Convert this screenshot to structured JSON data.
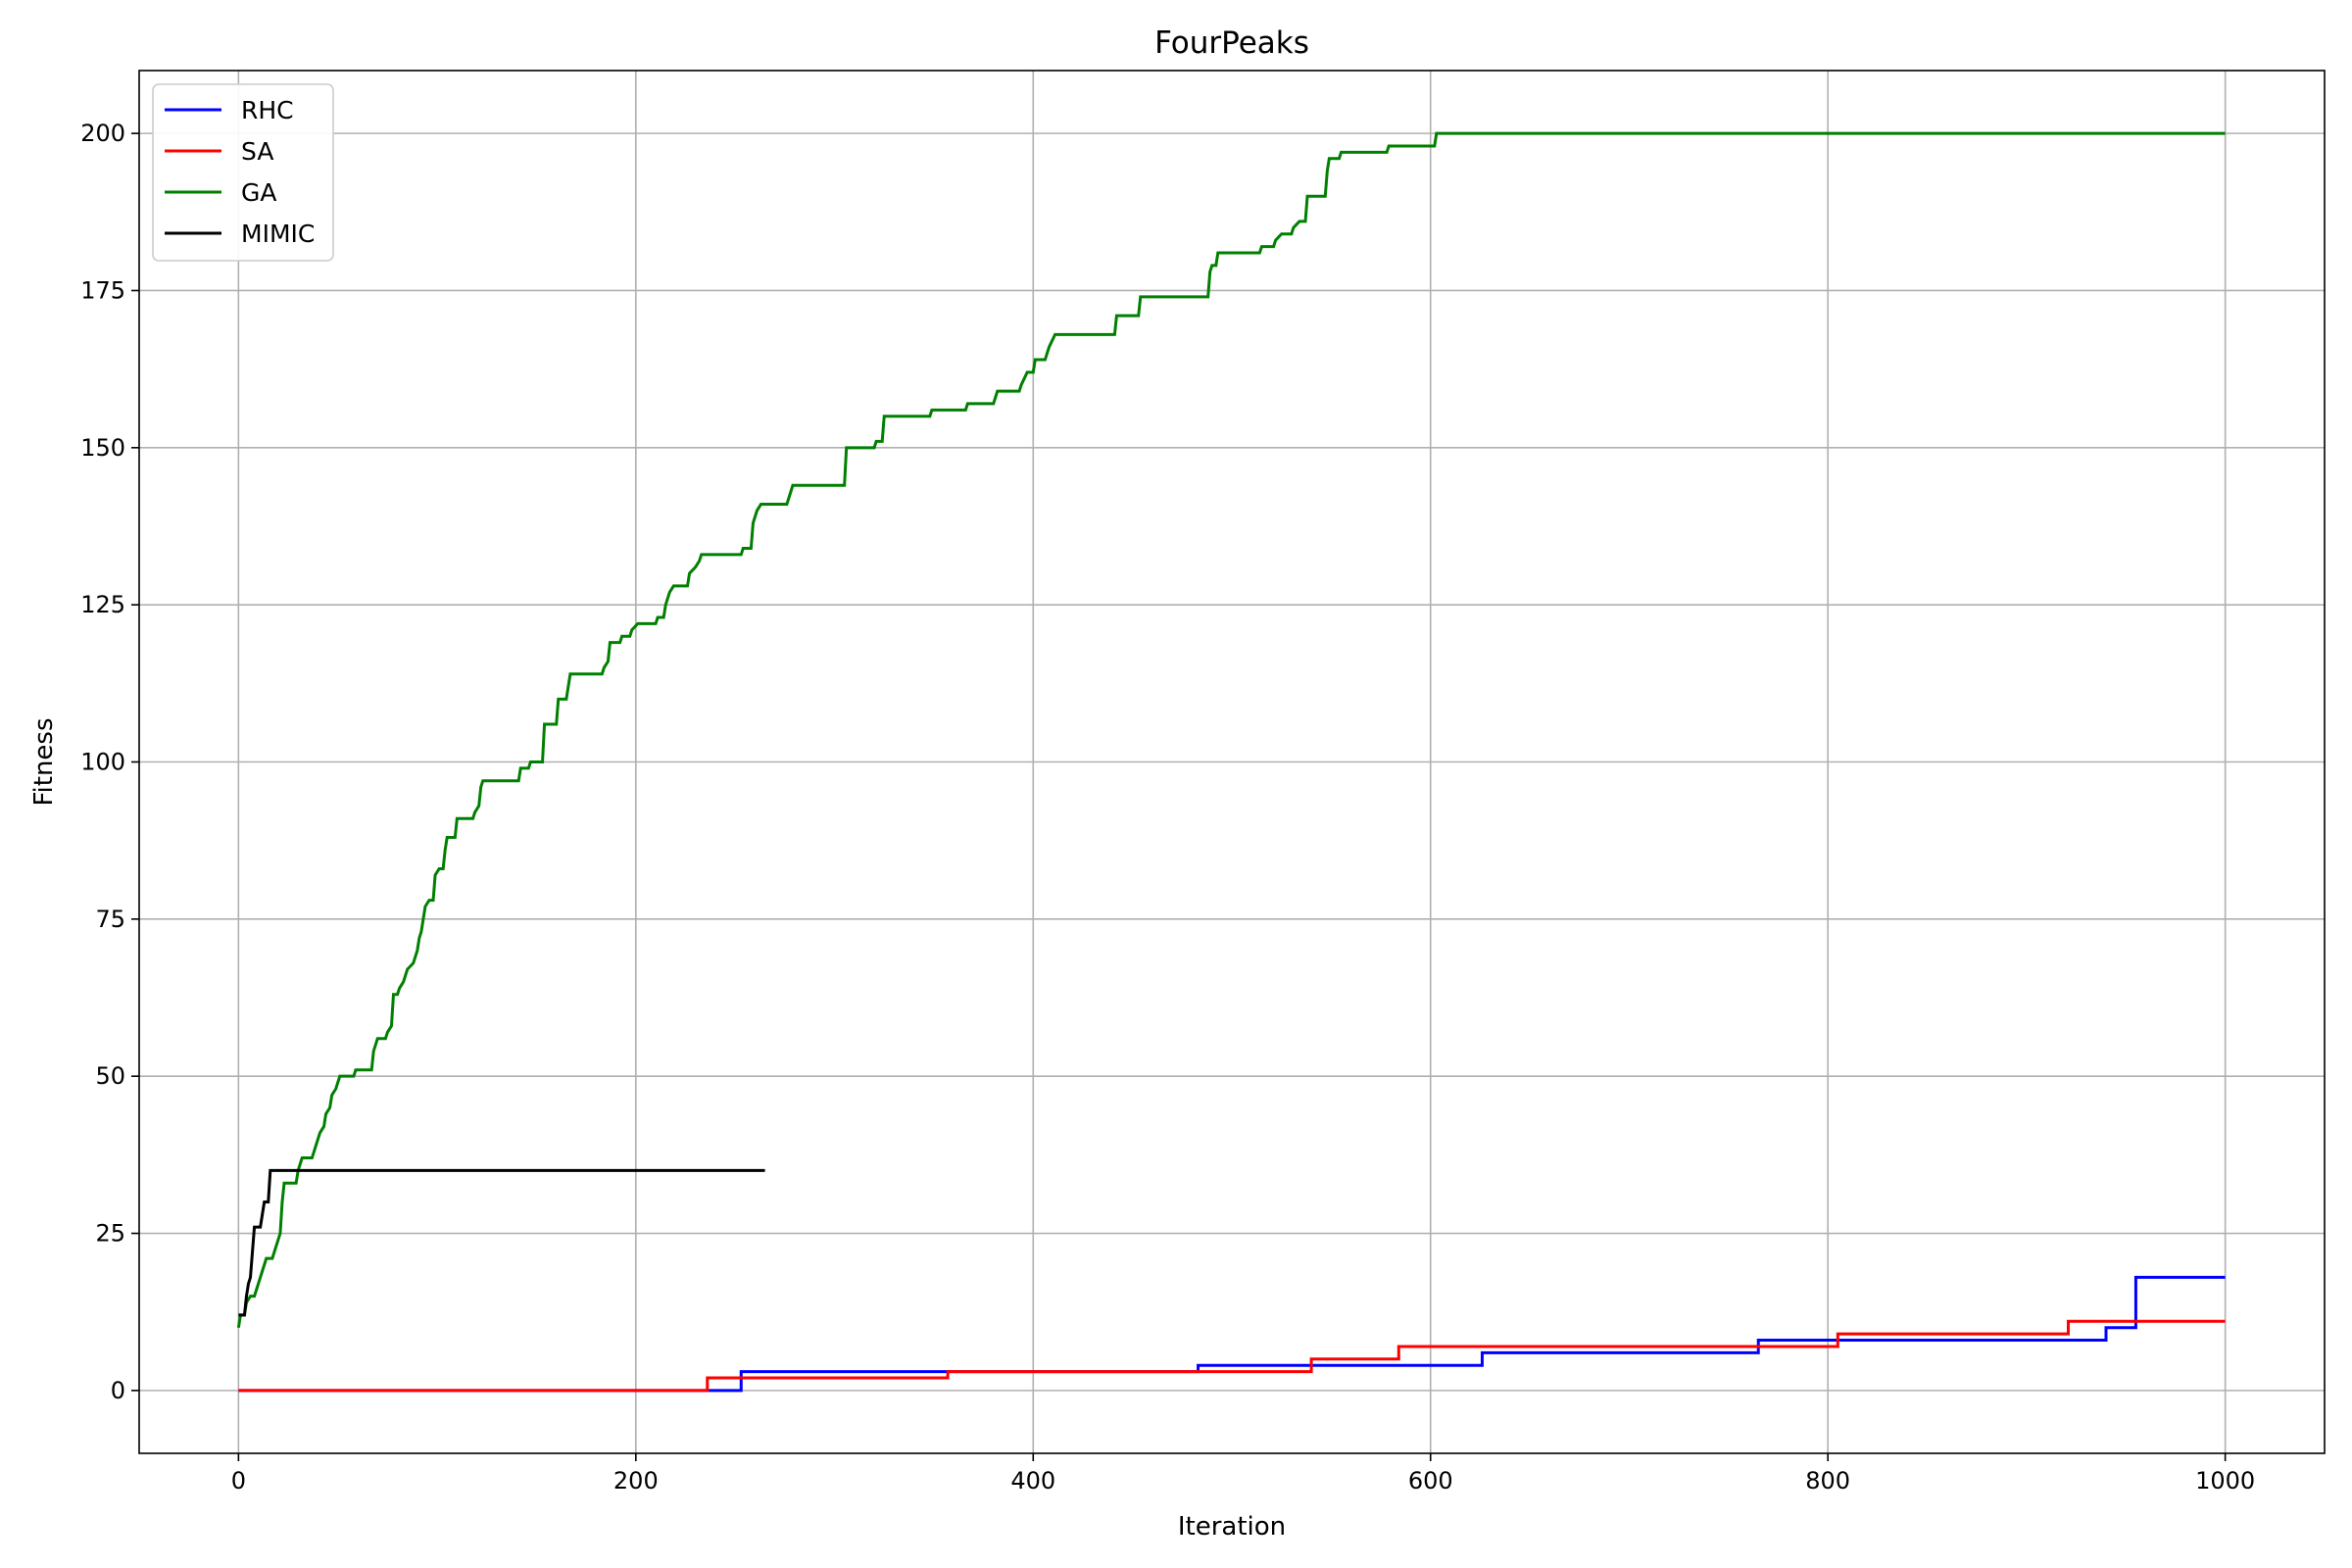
{
  "chart_data": {
    "type": "line",
    "title": "FourPeaks",
    "xlabel": "Iteration",
    "ylabel": "Fitness",
    "xlim": [
      -50,
      1050
    ],
    "ylim": [
      -10,
      210
    ],
    "xticks": [
      0,
      200,
      400,
      600,
      800,
      1000
    ],
    "yticks": [
      0,
      25,
      50,
      75,
      100,
      125,
      150,
      175,
      200
    ],
    "xtick_labels": [
      "0",
      "200",
      "400",
      "600",
      "800",
      "1000"
    ],
    "ytick_labels": [
      "0",
      "25",
      "50",
      "75",
      "100",
      "125",
      "150",
      "175",
      "200"
    ],
    "grid": true,
    "legend_position": "upper left",
    "series": [
      {
        "name": "RHC",
        "color": "#0000ff",
        "step": true,
        "points": [
          [
            0,
            0
          ],
          [
            253,
            0
          ],
          [
            253,
            3
          ],
          [
            483,
            3
          ],
          [
            483,
            4
          ],
          [
            626,
            4
          ],
          [
            626,
            6
          ],
          [
            765,
            6
          ],
          [
            765,
            8
          ],
          [
            940,
            8
          ],
          [
            940,
            10
          ],
          [
            955,
            10
          ],
          [
            955,
            18
          ],
          [
            1000,
            18
          ]
        ]
      },
      {
        "name": "SA",
        "color": "#ff0000",
        "step": true,
        "points": [
          [
            0,
            0
          ],
          [
            236,
            0
          ],
          [
            236,
            2
          ],
          [
            357,
            2
          ],
          [
            357,
            3
          ],
          [
            540,
            3
          ],
          [
            540,
            5
          ],
          [
            584,
            5
          ],
          [
            584,
            7
          ],
          [
            805,
            7
          ],
          [
            805,
            9
          ],
          [
            921,
            9
          ],
          [
            921,
            11
          ],
          [
            1000,
            11
          ]
        ]
      },
      {
        "name": "GA",
        "color": "#008000",
        "step": true,
        "points": [
          [
            0,
            10
          ],
          [
            1,
            12
          ],
          [
            3,
            12
          ],
          [
            4,
            14
          ],
          [
            6,
            15
          ],
          [
            8,
            15
          ],
          [
            9,
            16
          ],
          [
            10,
            17
          ],
          [
            11,
            18
          ],
          [
            12,
            19
          ],
          [
            14,
            21
          ],
          [
            17,
            21
          ],
          [
            18,
            22
          ],
          [
            19,
            23
          ],
          [
            21,
            25
          ],
          [
            22,
            30
          ],
          [
            23,
            33
          ],
          [
            29,
            33
          ],
          [
            30,
            35
          ],
          [
            32,
            37
          ],
          [
            37,
            37
          ],
          [
            38,
            38
          ],
          [
            39,
            39
          ],
          [
            40,
            40
          ],
          [
            41,
            41
          ],
          [
            43,
            42
          ],
          [
            44,
            44
          ],
          [
            46,
            45
          ],
          [
            47,
            47
          ],
          [
            49,
            48
          ],
          [
            51,
            50
          ],
          [
            58,
            50
          ],
          [
            59,
            51
          ],
          [
            67,
            51
          ],
          [
            68,
            54
          ],
          [
            70,
            56
          ],
          [
            74,
            56
          ],
          [
            75,
            57
          ],
          [
            77,
            58
          ],
          [
            78,
            63
          ],
          [
            80,
            63
          ],
          [
            81,
            64
          ],
          [
            83,
            65
          ],
          [
            85,
            67
          ],
          [
            88,
            68
          ],
          [
            89,
            69
          ],
          [
            90,
            70
          ],
          [
            91,
            72
          ],
          [
            92,
            73
          ],
          [
            94,
            77
          ],
          [
            96,
            78
          ],
          [
            98,
            78
          ],
          [
            99,
            82
          ],
          [
            101,
            83
          ],
          [
            103,
            83
          ],
          [
            104,
            86
          ],
          [
            105,
            88
          ],
          [
            109,
            88
          ],
          [
            110,
            91
          ],
          [
            118,
            91
          ],
          [
            119,
            92
          ],
          [
            121,
            93
          ],
          [
            122,
            96
          ],
          [
            123,
            97
          ],
          [
            141,
            97
          ],
          [
            142,
            99
          ],
          [
            146,
            99
          ],
          [
            147,
            100
          ],
          [
            153,
            100
          ],
          [
            154,
            106
          ],
          [
            160,
            106
          ],
          [
            161,
            110
          ],
          [
            165,
            110
          ],
          [
            166,
            112
          ],
          [
            167,
            114
          ],
          [
            183,
            114
          ],
          [
            184,
            115
          ],
          [
            186,
            116
          ],
          [
            187,
            119
          ],
          [
            192,
            119
          ],
          [
            193,
            120
          ],
          [
            197,
            120
          ],
          [
            198,
            121
          ],
          [
            201,
            122
          ],
          [
            210,
            122
          ],
          [
            211,
            123
          ],
          [
            214,
            123
          ],
          [
            215,
            125
          ],
          [
            217,
            127
          ],
          [
            219,
            128
          ],
          [
            226,
            128
          ],
          [
            227,
            130
          ],
          [
            230,
            131
          ],
          [
            232,
            132
          ],
          [
            233,
            133
          ],
          [
            253,
            133
          ],
          [
            254,
            134
          ],
          [
            258,
            134
          ],
          [
            259,
            138
          ],
          [
            261,
            140
          ],
          [
            263,
            141
          ],
          [
            276,
            141
          ],
          [
            277,
            142
          ],
          [
            279,
            144
          ],
          [
            305,
            144
          ],
          [
            306,
            150
          ],
          [
            320,
            150
          ],
          [
            321,
            151
          ],
          [
            324,
            151
          ],
          [
            325,
            155
          ],
          [
            348,
            155
          ],
          [
            349,
            156
          ],
          [
            366,
            156
          ],
          [
            367,
            157
          ],
          [
            380,
            157
          ],
          [
            381,
            158
          ],
          [
            382,
            159
          ],
          [
            393,
            159
          ],
          [
            394,
            160
          ],
          [
            397,
            162
          ],
          [
            400,
            162
          ],
          [
            401,
            164
          ],
          [
            406,
            164
          ],
          [
            407,
            165
          ],
          [
            408,
            166
          ],
          [
            411,
            168
          ],
          [
            441,
            168
          ],
          [
            442,
            171
          ],
          [
            453,
            171
          ],
          [
            454,
            174
          ],
          [
            488,
            174
          ],
          [
            489,
            178
          ],
          [
            490,
            179
          ],
          [
            492,
            179
          ],
          [
            493,
            181
          ],
          [
            514,
            181
          ],
          [
            515,
            182
          ],
          [
            521,
            182
          ],
          [
            522,
            183
          ],
          [
            525,
            184
          ],
          [
            530,
            184
          ],
          [
            531,
            185
          ],
          [
            534,
            186
          ],
          [
            537,
            186
          ],
          [
            538,
            190
          ],
          [
            547,
            190
          ],
          [
            548,
            194
          ],
          [
            549,
            196
          ],
          [
            554,
            196
          ],
          [
            555,
            197
          ],
          [
            578,
            197
          ],
          [
            579,
            198
          ],
          [
            602,
            198
          ],
          [
            603,
            200
          ],
          [
            1000,
            200
          ]
        ]
      },
      {
        "name": "MIMIC",
        "color": "#000000",
        "step": true,
        "points": [
          [
            0,
            12
          ],
          [
            3,
            12
          ],
          [
            4,
            15
          ],
          [
            5,
            17
          ],
          [
            6,
            18
          ],
          [
            7,
            22
          ],
          [
            8,
            26
          ],
          [
            11,
            26
          ],
          [
            12,
            28
          ],
          [
            13,
            30
          ],
          [
            15,
            30
          ],
          [
            16,
            35
          ],
          [
            265,
            35
          ]
        ]
      }
    ]
  }
}
